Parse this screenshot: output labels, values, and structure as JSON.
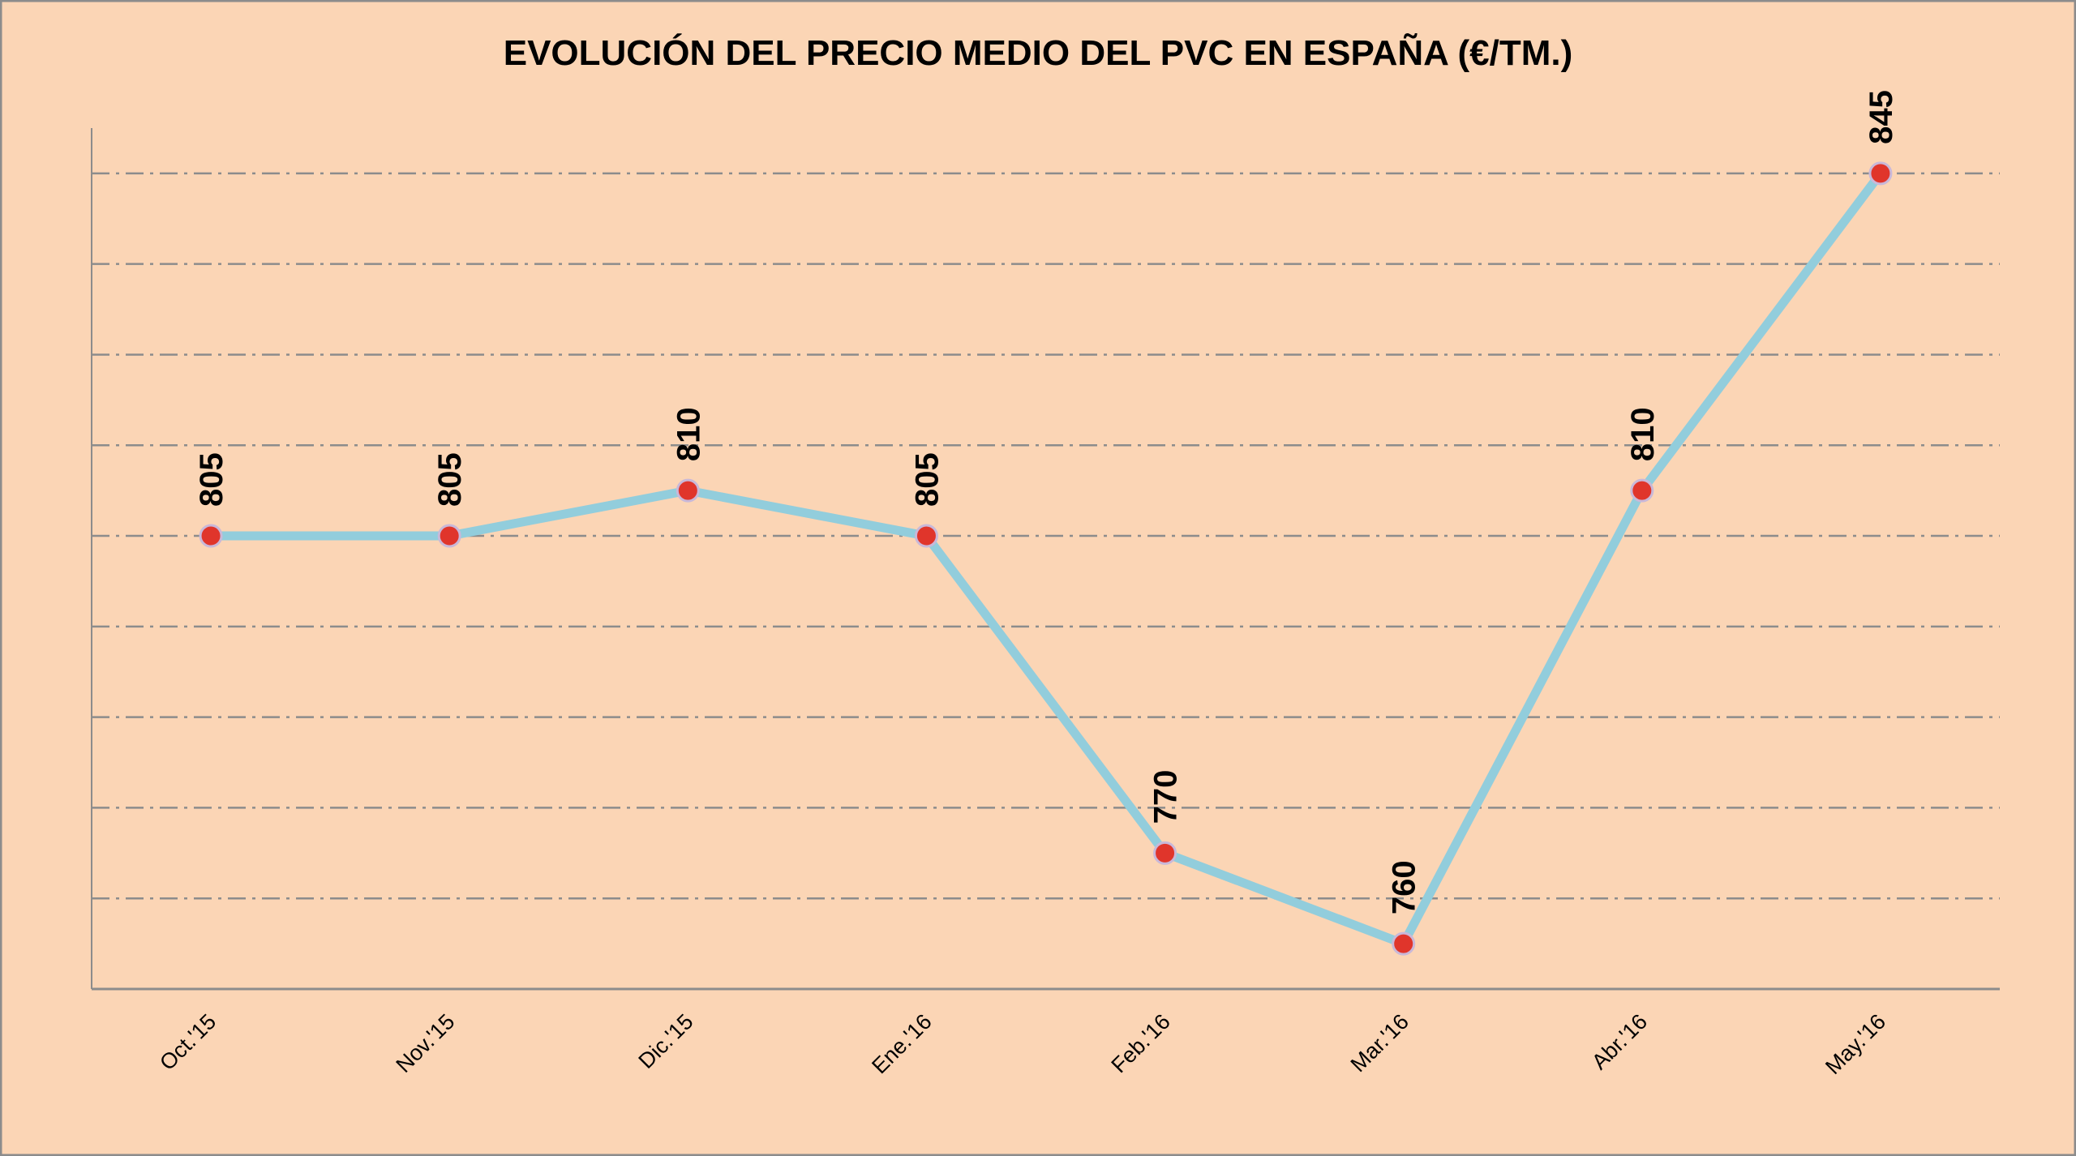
{
  "chart_data": {
    "type": "line",
    "title": "EVOLUCIÓN DEL PRECIO MEDIO DEL PVC EN ESPAÑA (€/TM.)",
    "xlabel": "",
    "ylabel": "",
    "categories": [
      "Oct.'15",
      "Nov.'15",
      "Dic.'15",
      "Ene.'16",
      "Feb.'16",
      "Mar.'16",
      "Abr.'16",
      "May.'16"
    ],
    "values": [
      805,
      805,
      810,
      805,
      770,
      760,
      810,
      845
    ],
    "data_labels": [
      "805",
      "805",
      "810",
      "805",
      "770",
      "760",
      "810",
      "845"
    ],
    "ylim": [
      755,
      850
    ],
    "gridlines": [
      765,
      775,
      785,
      795,
      805,
      815,
      825,
      835,
      845
    ],
    "grid": true,
    "grid_style": "dash-dot",
    "y_tick_labels": false,
    "legend": "none",
    "colors": {
      "background": "#FBD5B5",
      "line": "#92CDDC",
      "marker": "#E0352B",
      "grid": "#8C8C8C"
    }
  }
}
